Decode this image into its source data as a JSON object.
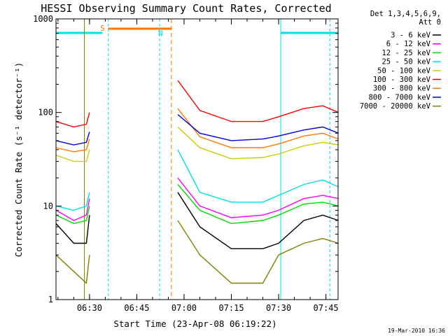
{
  "chart_data": {
    "type": "line",
    "title": "HESSI Observing Summary Count Rates, Corrected",
    "xlabel": "Start Time (23-Apr-08 06:19:22)",
    "ylabel": "Corrected Count Rate (s⁻¹ detector⁻¹)",
    "y_scale": "log",
    "ylim": [
      1,
      1000
    ],
    "xlim_minutes_after_start": [
      0,
      89.5
    ],
    "y_tick_labels": [
      "1",
      "10",
      "100",
      "1000"
    ],
    "x_tick_labels": [
      "06:30",
      "06:45",
      "07:00",
      "07:15",
      "07:30",
      "07:45"
    ],
    "legend_header": [
      "Det 1,3,4,5,6,9,",
      "Att 0"
    ],
    "legend_position": "right of plot",
    "footer_text": "19-Mar-2010 16:36",
    "flags": {
      "saa_label": "S",
      "night_label": "N"
    },
    "series": [
      {
        "name": "3 - 6 keV",
        "color": "#000000",
        "x": [
          "06:19:22",
          "06:25",
          "06:29",
          "06:30",
          "06:39",
          "06:55",
          "06:58",
          "07:05",
          "07:15",
          "07:25",
          "07:30",
          "07:38",
          "07:44",
          "07:49"
        ],
        "y": [
          6.5,
          4,
          4,
          8,
          null,
          null,
          14,
          6,
          3.5,
          3.5,
          4,
          7,
          8,
          7
        ]
      },
      {
        "name": "6 - 12 keV",
        "color": "#ff00ff",
        "x": [
          "06:19:22",
          "06:25",
          "06:29",
          "06:30",
          "06:39",
          "06:55",
          "06:58",
          "07:05",
          "07:15",
          "07:25",
          "07:30",
          "07:38",
          "07:44",
          "07:49"
        ],
        "y": [
          9,
          7,
          8,
          12,
          null,
          null,
          20,
          10,
          7.5,
          8,
          9,
          12,
          13,
          12
        ]
      },
      {
        "name": "12 - 25 keV",
        "color": "#00dd00",
        "x": [
          "06:19:22",
          "06:25",
          "06:29",
          "06:30",
          "06:39",
          "06:55",
          "06:58",
          "07:05",
          "07:15",
          "07:25",
          "07:30",
          "07:38",
          "07:44",
          "07:49"
        ],
        "y": [
          8,
          6.5,
          7,
          10,
          null,
          null,
          17,
          9,
          6.5,
          7,
          8,
          10.5,
          11,
          10
        ]
      },
      {
        "name": "25 - 50 keV",
        "color": "#00e0e0",
        "x": [
          "06:19:22",
          "06:25",
          "06:29",
          "06:30",
          "06:39",
          "06:55",
          "06:58",
          "07:05",
          "07:15",
          "07:25",
          "07:30",
          "07:38",
          "07:44",
          "07:49"
        ],
        "y": [
          10,
          9,
          10,
          14,
          null,
          null,
          40,
          14,
          11,
          11,
          13,
          17,
          19,
          16
        ]
      },
      {
        "name": "50 - 100 keV",
        "color": "#cccc00",
        "x": [
          "06:19:22",
          "06:25",
          "06:29",
          "06:30",
          "06:39",
          "06:55",
          "06:58",
          "07:05",
          "07:15",
          "07:25",
          "07:30",
          "07:38",
          "07:44",
          "07:49"
        ],
        "y": [
          35,
          30,
          30,
          40,
          null,
          null,
          70,
          42,
          32,
          33,
          36,
          44,
          48,
          45
        ]
      },
      {
        "name": "100 - 300 keV",
        "color": "#ff0000",
        "x": [
          "06:19:22",
          "06:25",
          "06:29",
          "06:30",
          "06:39",
          "06:55",
          "06:58",
          "07:05",
          "07:15",
          "07:25",
          "07:30",
          "07:38",
          "07:44",
          "07:49"
        ],
        "y": [
          80,
          70,
          75,
          100,
          null,
          null,
          220,
          105,
          80,
          80,
          90,
          110,
          118,
          100
        ]
      },
      {
        "name": "300 - 800 keV",
        "color": "#ff7700",
        "x": [
          "06:19:22",
          "06:25",
          "06:29",
          "06:30",
          "06:39",
          "06:55",
          "06:58",
          "07:05",
          "07:15",
          "07:25",
          "07:30",
          "07:38",
          "07:44",
          "07:49"
        ],
        "y": [
          42,
          38,
          40,
          52,
          null,
          null,
          110,
          55,
          42,
          42,
          46,
          56,
          60,
          52
        ]
      },
      {
        "name": "800 - 7000 keV",
        "color": "#0000dd",
        "x": [
          "06:19:22",
          "06:25",
          "06:29",
          "06:30",
          "06:39",
          "06:55",
          "06:58",
          "07:05",
          "07:15",
          "07:25",
          "07:30",
          "07:38",
          "07:44",
          "07:49"
        ],
        "y": [
          50,
          45,
          48,
          62,
          null,
          null,
          95,
          60,
          50,
          52,
          56,
          65,
          70,
          60
        ]
      },
      {
        "name": "7000 - 20000 keV",
        "color": "#808000",
        "x": [
          "06:19:22",
          "06:25",
          "06:29",
          "06:30",
          "06:39",
          "06:55",
          "06:58",
          "07:05",
          "07:15",
          "07:25",
          "07:30",
          "07:38",
          "07:44",
          "07:49"
        ],
        "y": [
          3,
          2,
          1.5,
          3,
          null,
          null,
          7,
          3,
          1.5,
          1.5,
          3,
          4,
          4.5,
          4
        ]
      }
    ]
  }
}
